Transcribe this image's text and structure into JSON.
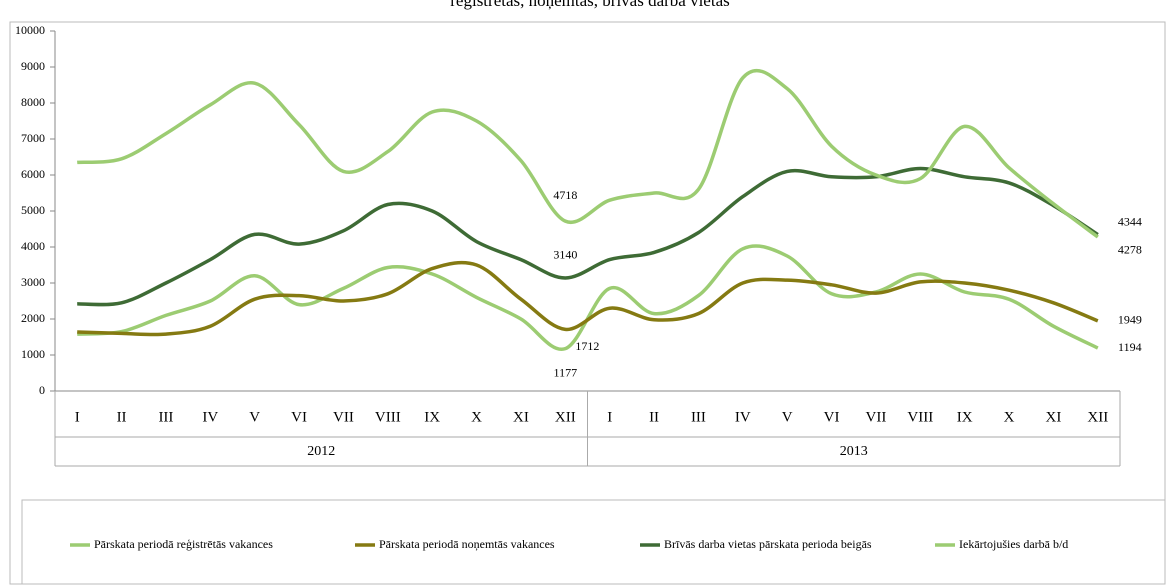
{
  "chart_data": {
    "type": "line",
    "title": "reģistrētās, noņemtās, brīvās darba vietas",
    "categories": [
      "I",
      "II",
      "III",
      "IV",
      "V",
      "VI",
      "VII",
      "VIII",
      "IX",
      "X",
      "XI",
      "XII",
      "I",
      "II",
      "III",
      "IV",
      "V",
      "VI",
      "VII",
      "VIII",
      "IX",
      "X",
      "XI",
      "XII"
    ],
    "category_groups": [
      "2012",
      "2013"
    ],
    "series": [
      {
        "name": "Pārskata periodā reģistrētās vakances",
        "color": "#9ccc72",
        "values": [
          1580,
          1650,
          2100,
          2500,
          3200,
          2400,
          2850,
          3430,
          3250,
          2600,
          2000,
          1177,
          2850,
          2150,
          2650,
          3950,
          3750,
          2700,
          2750,
          3250,
          2750,
          2550,
          1800,
          1194
        ]
      },
      {
        "name": "Pārskata periodā noņemtās vakances",
        "color": "#857a12",
        "values": [
          1640,
          1600,
          1580,
          1800,
          2550,
          2650,
          2500,
          2700,
          3400,
          3500,
          2550,
          1712,
          2300,
          1980,
          2150,
          3000,
          3080,
          2950,
          2720,
          3030,
          3000,
          2800,
          2450,
          1949
        ]
      },
      {
        "name": "Brīvās darba vietas pārskata perioda beigās",
        "color": "#3e6b35",
        "values": [
          2420,
          2450,
          3000,
          3650,
          4350,
          4080,
          4450,
          5180,
          5000,
          4150,
          3650,
          3140,
          3650,
          3850,
          4400,
          5400,
          6100,
          5950,
          5950,
          6180,
          5950,
          5780,
          5150,
          4344
        ]
      },
      {
        "name": "Iekārtojušies darbā b/d",
        "color": "#9ccc72",
        "values": [
          6350,
          6450,
          7150,
          7950,
          8550,
          7400,
          6100,
          6650,
          7750,
          7500,
          6400,
          4718,
          5300,
          5500,
          5600,
          8700,
          8400,
          6800,
          6000,
          5900,
          7350,
          6200,
          5200,
          4278
        ]
      }
    ],
    "data_labels_at": [
      11,
      23
    ],
    "ylim": [
      0,
      10000
    ],
    "yticks": [
      0,
      1000,
      2000,
      3000,
      4000,
      5000,
      6000,
      7000,
      8000,
      9000,
      10000
    ],
    "grid": false,
    "legend": "bottom"
  }
}
